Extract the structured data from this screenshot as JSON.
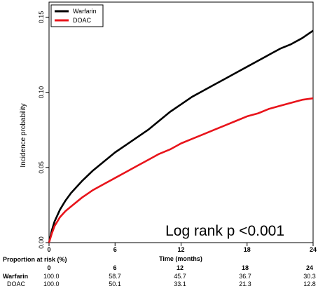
{
  "chart_data": {
    "type": "line",
    "title": "",
    "xlabel": "Time (months)",
    "ylabel": "Incidence probability",
    "xlim": [
      0,
      24
    ],
    "ylim": [
      0,
      0.16
    ],
    "x_ticks": [
      0,
      6,
      12,
      18,
      24
    ],
    "y_ticks": [
      0.0,
      0.05,
      0.1,
      0.15
    ],
    "y_tick_labels": [
      "0.00",
      "0.05",
      "0.10",
      "0.15"
    ],
    "grid": false,
    "legend_position": "top-left",
    "series": [
      {
        "name": "Warfarin",
        "color": "#000000",
        "x": [
          0,
          0.25,
          0.5,
          1,
          1.5,
          2,
          3,
          4,
          5,
          6,
          7,
          8,
          9,
          10,
          11,
          12,
          13,
          14,
          15,
          16,
          17,
          18,
          19,
          20,
          21,
          22,
          23,
          24
        ],
        "y": [
          0,
          0.008,
          0.014,
          0.022,
          0.028,
          0.033,
          0.041,
          0.048,
          0.054,
          0.06,
          0.065,
          0.07,
          0.075,
          0.081,
          0.087,
          0.092,
          0.097,
          0.101,
          0.105,
          0.109,
          0.113,
          0.117,
          0.121,
          0.125,
          0.129,
          0.132,
          0.136,
          0.141
        ]
      },
      {
        "name": "DOAC",
        "color": "#e8141b",
        "x": [
          0,
          0.25,
          0.5,
          1,
          1.5,
          2,
          3,
          4,
          5,
          6,
          7,
          8,
          9,
          10,
          11,
          12,
          13,
          14,
          15,
          16,
          17,
          18,
          19,
          20,
          21,
          22,
          23,
          24
        ],
        "y": [
          0,
          0.006,
          0.011,
          0.017,
          0.021,
          0.024,
          0.03,
          0.035,
          0.039,
          0.043,
          0.047,
          0.051,
          0.055,
          0.059,
          0.062,
          0.066,
          0.069,
          0.072,
          0.075,
          0.078,
          0.081,
          0.084,
          0.086,
          0.089,
          0.091,
          0.093,
          0.095,
          0.096
        ]
      }
    ],
    "annotation": "Log rank p <0.001",
    "risk_table": {
      "title": "Proportion at risk (%)",
      "times": [
        "0",
        "6",
        "12",
        "18",
        "24"
      ],
      "rows": [
        {
          "label": "Warfarin",
          "values": [
            "100.0",
            "58.7",
            "45.7",
            "36.7",
            "30.3"
          ]
        },
        {
          "label": "DOAC",
          "values": [
            "100.0",
            "50.1",
            "33.1",
            "21.3",
            "12.8"
          ]
        }
      ]
    }
  }
}
